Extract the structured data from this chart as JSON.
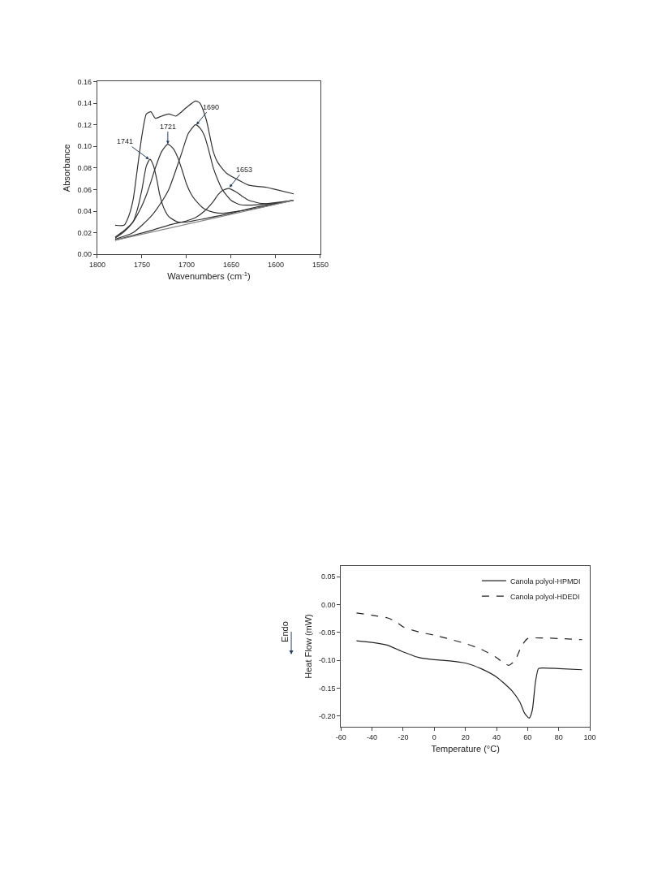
{
  "chart_data": [
    {
      "type": "line",
      "xlabel": "Wavenumbers (cm$^{-1}$)",
      "ylabel": "Absorbance",
      "xlim": [
        1800,
        1550
      ],
      "xticks": [
        1800,
        1750,
        1700,
        1650,
        1600,
        1550
      ],
      "ylim": [
        0,
        0.16
      ],
      "yticks": [
        {
          "value": 0,
          "label": "0.00"
        },
        0.02,
        0.04,
        0.06,
        0.08,
        {
          "value": 0.1,
          "label": "0.10"
        },
        0.12,
        0.14,
        0.16
      ],
      "grid": false,
      "legend": false,
      "line_style": "solid",
      "series": [
        {
          "color": "#333333",
          "x": [
            1780,
            1770,
            1765,
            1760,
            1755,
            1750,
            1745,
            1740,
            1735,
            1728,
            1720,
            1712,
            1700,
            1690,
            1685,
            1678,
            1670,
            1665,
            1655,
            1640,
            1630,
            1610,
            1600,
            1580
          ],
          "values": [
            0.027,
            0.027,
            0.035,
            0.05,
            0.08,
            0.11,
            0.13,
            0.132,
            0.126,
            0.128,
            0.13,
            0.128,
            0.136,
            0.142,
            0.14,
            0.125,
            0.095,
            0.085,
            0.075,
            0.068,
            0.064,
            0.062,
            0.06,
            0.056
          ]
        },
        {
          "color": "#333333",
          "x": [
            1780,
            1770,
            1760,
            1755,
            1750,
            1745,
            1741,
            1737,
            1733,
            1730,
            1725,
            1720,
            1710,
            1700,
            1680,
            1650,
            1620,
            1580
          ],
          "values": [
            0.016,
            0.022,
            0.03,
            0.042,
            0.06,
            0.082,
            0.088,
            0.082,
            0.068,
            0.055,
            0.042,
            0.035,
            0.03,
            0.03,
            0.033,
            0.038,
            0.044,
            0.05
          ]
        },
        {
          "color": "#333333",
          "x": [
            1780,
            1770,
            1760,
            1750,
            1745,
            1740,
            1735,
            1728,
            1721,
            1715,
            1710,
            1705,
            1700,
            1695,
            1690,
            1680,
            1670,
            1660,
            1650,
            1620,
            1580
          ],
          "values": [
            0.015,
            0.021,
            0.03,
            0.045,
            0.055,
            0.067,
            0.08,
            0.095,
            0.102,
            0.098,
            0.09,
            0.078,
            0.065,
            0.056,
            0.05,
            0.042,
            0.039,
            0.038,
            0.039,
            0.043,
            0.05
          ]
        },
        {
          "color": "#333333",
          "x": [
            1780,
            1760,
            1740,
            1730,
            1720,
            1712,
            1705,
            1698,
            1690,
            1685,
            1680,
            1675,
            1670,
            1665,
            1660,
            1650,
            1640,
            1620,
            1580
          ],
          "values": [
            0.014,
            0.02,
            0.035,
            0.046,
            0.06,
            0.078,
            0.095,
            0.112,
            0.12,
            0.117,
            0.11,
            0.096,
            0.08,
            0.069,
            0.06,
            0.05,
            0.046,
            0.046,
            0.05
          ]
        },
        {
          "color": "#333333",
          "x": [
            1780,
            1740,
            1720,
            1700,
            1690,
            1680,
            1670,
            1665,
            1660,
            1653,
            1645,
            1638,
            1630,
            1615,
            1600,
            1580
          ],
          "values": [
            0.013,
            0.022,
            0.027,
            0.031,
            0.034,
            0.04,
            0.049,
            0.055,
            0.059,
            0.061,
            0.058,
            0.054,
            0.05,
            0.047,
            0.047,
            0.05
          ]
        },
        {
          "color": "#888888",
          "x": [
            1780,
            1580
          ],
          "values": [
            0.013,
            0.05
          ]
        }
      ],
      "annotations": [
        {
          "text": "1741",
          "x": 1742,
          "y": 0.088
        },
        {
          "text": "1721",
          "x": 1721,
          "y": 0.102
        },
        {
          "text": "1690",
          "x": 1689,
          "y": 0.12
        },
        {
          "text": "1653",
          "x": 1652,
          "y": 0.062
        }
      ]
    },
    {
      "type": "line",
      "xlabel": "Temperature (°C)",
      "ylabel": "Heat Flow (mW)",
      "xlim": [
        -60,
        100
      ],
      "xticks": [
        -60,
        -40,
        -20,
        0,
        20,
        40,
        60,
        80,
        100
      ],
      "ylim": [
        -0.22,
        0.07
      ],
      "yticks": [
        {
          "value": -0.2,
          "label": "-0.20"
        },
        -0.15,
        {
          "value": -0.1,
          "label": "-0.10"
        },
        -0.05,
        {
          "value": 0,
          "label": "0.00"
        },
        0.05
      ],
      "grid": false,
      "legend": "top right",
      "series": [
        {
          "name": "Canola polyol-HPMDI",
          "color": "#222222",
          "line_style": "solid",
          "x": [
            -50,
            -40,
            -30,
            -20,
            -10,
            0,
            10,
            20,
            30,
            40,
            50,
            55,
            58,
            61,
            63,
            65,
            67,
            70,
            80,
            95
          ],
          "values": [
            -0.065,
            -0.068,
            -0.073,
            -0.085,
            -0.095,
            -0.099,
            -0.101,
            -0.105,
            -0.115,
            -0.13,
            -0.155,
            -0.175,
            -0.195,
            -0.204,
            -0.19,
            -0.14,
            -0.115,
            -0.114,
            -0.115,
            -0.117
          ]
        },
        {
          "name": "Canola polyol-HDEDI",
          "color": "#222222",
          "line_style": "dashed",
          "x": [
            -50,
            -40,
            -30,
            -25,
            -20,
            -10,
            0,
            10,
            20,
            30,
            40,
            45,
            48,
            52,
            56,
            60,
            70,
            80,
            95
          ],
          "values": [
            -0.015,
            -0.019,
            -0.024,
            -0.03,
            -0.04,
            -0.049,
            -0.055,
            -0.062,
            -0.07,
            -0.08,
            -0.095,
            -0.106,
            -0.109,
            -0.1,
            -0.075,
            -0.061,
            -0.06,
            -0.061,
            -0.063
          ]
        }
      ],
      "annotations": [
        "Endo"
      ]
    }
  ]
}
